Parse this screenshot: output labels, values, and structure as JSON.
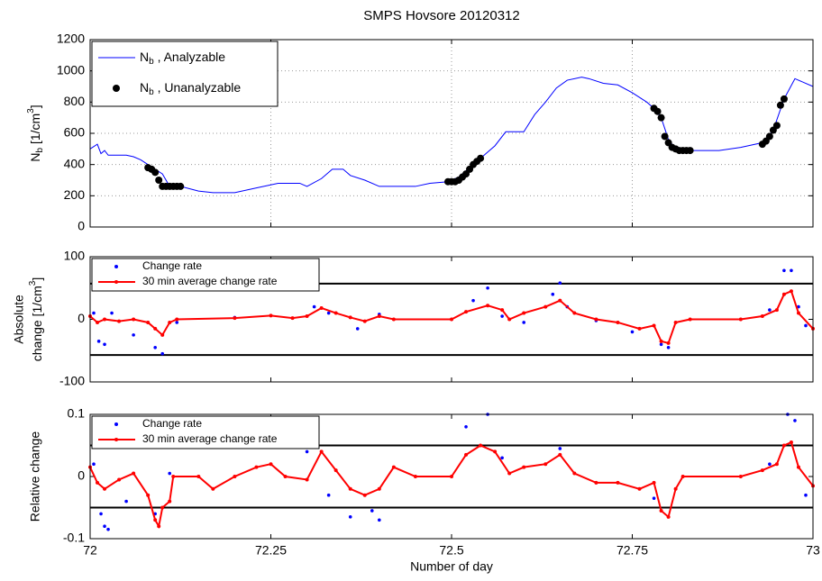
{
  "chart_data": [
    {
      "type": "line",
      "title": "SMPS Hovsore 20120312",
      "ylabel": [
        {
          "text": "N"
        },
        {
          "text": "b",
          "sub": true
        },
        {
          "text": "  [1/cm"
        },
        {
          "text": "3",
          "sup": true
        },
        {
          "text": "]"
        }
      ],
      "xlim": [
        72,
        73
      ],
      "xticks": [
        72,
        72.25,
        72.5,
        72.75,
        73
      ],
      "show_xtick_labels": false,
      "ylim": [
        0,
        1200
      ],
      "yticks": [
        0,
        200,
        400,
        600,
        800,
        1000,
        1200
      ],
      "grid": true,
      "legend": "upper left",
      "series": [
        {
          "name": [
            {
              "text": "N"
            },
            {
              "text": "b",
              "sub": true
            },
            {
              "text": " , Analyzable"
            }
          ],
          "color": "#0000ff",
          "style": "line",
          "x": [
            72.0,
            72.01,
            72.015,
            72.02,
            72.025,
            72.05,
            72.06,
            72.07,
            72.08,
            72.09,
            72.1,
            72.11,
            72.125,
            72.15,
            72.17,
            72.2,
            72.23,
            72.26,
            72.29,
            72.3,
            72.32,
            72.335,
            72.35,
            72.36,
            72.38,
            72.4,
            72.45,
            72.47,
            72.495,
            72.51,
            72.525,
            72.54,
            72.56,
            72.575,
            72.6,
            72.615,
            72.63,
            72.645,
            72.66,
            72.68,
            72.69,
            72.71,
            72.73,
            72.75,
            72.77,
            72.78,
            72.79,
            72.8,
            72.81,
            72.83,
            72.87,
            72.9,
            72.93,
            72.945,
            72.96,
            72.975,
            73.0
          ],
          "values": [
            500,
            530,
            470,
            490,
            460,
            460,
            450,
            430,
            400,
            370,
            340,
            260,
            260,
            230,
            220,
            220,
            250,
            280,
            280,
            260,
            310,
            370,
            370,
            330,
            300,
            260,
            260,
            280,
            290,
            320,
            380,
            440,
            520,
            610,
            610,
            720,
            800,
            890,
            940,
            960,
            950,
            920,
            910,
            860,
            800,
            760,
            700,
            560,
            500,
            490,
            490,
            510,
            540,
            620,
            820,
            950,
            900
          ]
        },
        {
          "name": [
            {
              "text": "N"
            },
            {
              "text": "b",
              "sub": true
            },
            {
              "text": " , Unanalyzable"
            }
          ],
          "color": "#000000",
          "style": "dots",
          "x": [
            72.08,
            72.085,
            72.09,
            72.095,
            72.1,
            72.105,
            72.11,
            72.115,
            72.12,
            72.125,
            72.495,
            72.5,
            72.505,
            72.51,
            72.515,
            72.52,
            72.525,
            72.53,
            72.535,
            72.54,
            72.78,
            72.785,
            72.79,
            72.795,
            72.8,
            72.805,
            72.81,
            72.815,
            72.82,
            72.825,
            72.83,
            72.93,
            72.935,
            72.94,
            72.945,
            72.95,
            72.955,
            72.96
          ],
          "values": [
            380,
            370,
            350,
            300,
            260,
            260,
            260,
            260,
            260,
            260,
            290,
            290,
            290,
            300,
            320,
            340,
            370,
            400,
            420,
            440,
            760,
            740,
            700,
            580,
            540,
            510,
            500,
            490,
            490,
            490,
            490,
            530,
            550,
            580,
            620,
            650,
            780,
            820
          ]
        }
      ]
    },
    {
      "type": "line",
      "ylabel": [
        {
          "text": "Absolute"
        },
        {
          "text": "change [1/cm"
        },
        {
          "text": "3",
          "sup": true
        },
        {
          "text": "]"
        }
      ],
      "xlim": [
        72,
        73
      ],
      "xticks": [
        72,
        72.25,
        72.5,
        72.75,
        73
      ],
      "show_xtick_labels": false,
      "ylim": [
        -100,
        100
      ],
      "yticks": [
        -100,
        0,
        100
      ],
      "grid": false,
      "legend": "upper left",
      "hlines": [
        57,
        -57
      ],
      "series": [
        {
          "name": "Change rate",
          "color": "#0000ff",
          "style": "points",
          "x": [
            72.005,
            72.012,
            72.02,
            72.03,
            72.06,
            72.09,
            72.1,
            72.12,
            72.2,
            72.31,
            72.33,
            72.37,
            72.4,
            72.5,
            72.53,
            72.55,
            72.57,
            72.6,
            72.64,
            72.65,
            72.66,
            72.7,
            72.75,
            72.79,
            72.8,
            72.9,
            72.94,
            72.96,
            72.97,
            72.98,
            72.99
          ],
          "values": [
            10,
            -35,
            -40,
            10,
            -25,
            -45,
            -55,
            -5,
            3,
            20,
            10,
            -15,
            8,
            0,
            30,
            50,
            5,
            -5,
            40,
            58,
            20,
            -2,
            -20,
            -40,
            -45,
            0,
            15,
            78,
            78,
            20,
            -10
          ]
        },
        {
          "name": "30 min average change rate",
          "color": "#ff0000",
          "style": "line+markers",
          "x": [
            72.0,
            72.01,
            72.02,
            72.04,
            72.06,
            72.08,
            72.09,
            72.1,
            72.11,
            72.12,
            72.2,
            72.25,
            72.28,
            72.3,
            72.32,
            72.34,
            72.36,
            72.38,
            72.4,
            72.42,
            72.5,
            72.52,
            72.55,
            72.57,
            72.58,
            72.6,
            72.63,
            72.65,
            72.67,
            72.7,
            72.73,
            72.76,
            72.78,
            72.79,
            72.8,
            72.81,
            72.83,
            72.9,
            72.93,
            72.95,
            72.96,
            72.97,
            72.98,
            73.0
          ],
          "values": [
            5,
            -5,
            0,
            -3,
            0,
            -5,
            -15,
            -25,
            -5,
            0,
            2,
            6,
            2,
            5,
            18,
            10,
            3,
            -3,
            5,
            0,
            0,
            12,
            22,
            15,
            0,
            10,
            20,
            30,
            10,
            0,
            -5,
            -15,
            -10,
            -35,
            -38,
            -5,
            0,
            0,
            5,
            15,
            40,
            45,
            10,
            -15
          ]
        }
      ]
    },
    {
      "type": "line",
      "ylabel": "Relative change",
      "xlabel": "Number of day",
      "xlim": [
        72,
        73
      ],
      "xticks": [
        72,
        72.25,
        72.5,
        72.75,
        73
      ],
      "show_xtick_labels": true,
      "ylim": [
        -0.1,
        0.1
      ],
      "yticks": [
        -0.1,
        0,
        0.1
      ],
      "grid": false,
      "legend": "upper left",
      "hlines": [
        0.05,
        -0.05
      ],
      "series": [
        {
          "name": "Change rate",
          "color": "#0000ff",
          "style": "points",
          "x": [
            72.005,
            72.015,
            72.02,
            72.025,
            72.05,
            72.09,
            72.11,
            72.3,
            72.33,
            72.36,
            72.39,
            72.4,
            72.52,
            72.55,
            72.57,
            72.65,
            72.7,
            72.78,
            72.94,
            72.965,
            72.975,
            72.99
          ],
          "values": [
            0.02,
            -0.06,
            -0.08,
            -0.085,
            -0.04,
            -0.06,
            0.005,
            0.04,
            -0.03,
            -0.065,
            -0.055,
            -0.07,
            0.08,
            0.1,
            0.03,
            0.045,
            -0.01,
            -0.035,
            0.02,
            0.1,
            0.09,
            -0.03
          ]
        },
        {
          "name": "30 min average change rate",
          "color": "#ff0000",
          "style": "line+markers",
          "x": [
            72.0,
            72.01,
            72.02,
            72.04,
            72.06,
            72.08,
            72.09,
            72.095,
            72.1,
            72.11,
            72.115,
            72.15,
            72.17,
            72.2,
            72.23,
            72.25,
            72.27,
            72.3,
            72.32,
            72.34,
            72.36,
            72.38,
            72.4,
            72.42,
            72.45,
            72.5,
            72.52,
            72.54,
            72.56,
            72.58,
            72.6,
            72.63,
            72.65,
            72.67,
            72.7,
            72.73,
            72.76,
            72.78,
            72.79,
            72.8,
            72.81,
            72.82,
            72.9,
            72.93,
            72.95,
            72.96,
            72.97,
            72.98,
            73.0
          ],
          "values": [
            0.015,
            -0.01,
            -0.02,
            -0.005,
            0.005,
            -0.03,
            -0.07,
            -0.08,
            -0.05,
            -0.04,
            0,
            0,
            -0.02,
            0,
            0.015,
            0.02,
            0,
            -0.005,
            0.04,
            0.01,
            -0.02,
            -0.03,
            -0.02,
            0.015,
            0,
            0,
            0.035,
            0.05,
            0.04,
            0.005,
            0.015,
            0.02,
            0.035,
            0.005,
            -0.01,
            -0.01,
            -0.02,
            -0.01,
            -0.055,
            -0.065,
            -0.02,
            0,
            0,
            0.01,
            0.02,
            0.05,
            0.055,
            0.015,
            -0.015
          ]
        }
      ]
    }
  ]
}
